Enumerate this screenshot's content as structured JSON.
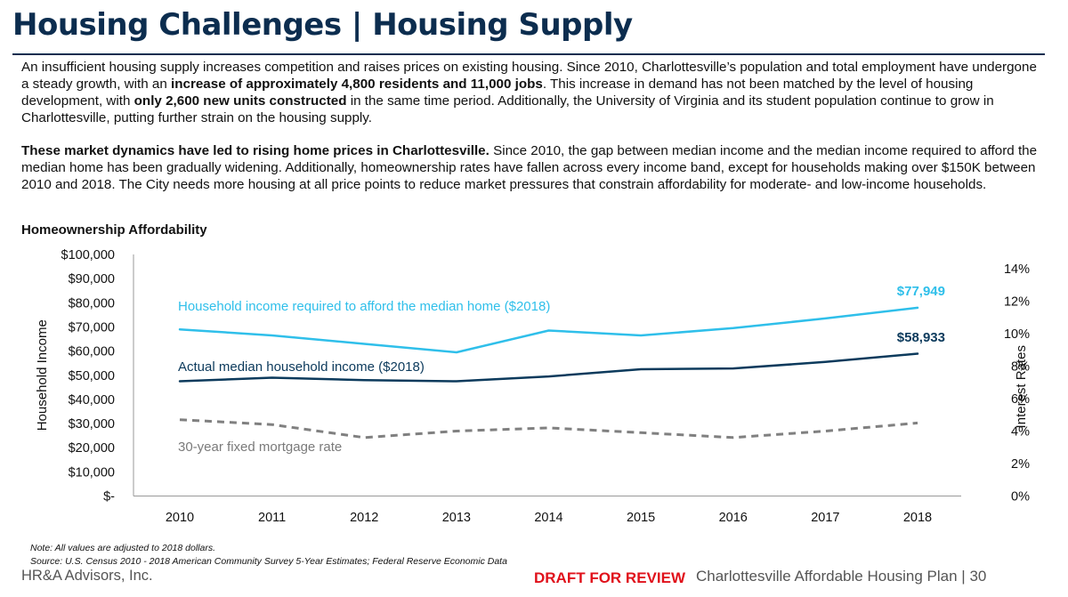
{
  "header": {
    "title": "Housing Challenges | Housing Supply"
  },
  "body": {
    "p1": [
      {
        "t": "An insufficient housing supply increases competition and raises prices on existing housing. Since 2010, Charlottesville’s population and total employment have undergone a steady growth, with an ",
        "b": false
      },
      {
        "t": "increase of approximately 4,800 residents and 11,000 jobs",
        "b": true
      },
      {
        "t": ". This increase in demand has not been matched by the level of housing development, with ",
        "b": false
      },
      {
        "t": "only 2,600 new units constructed",
        "b": true
      },
      {
        "t": " in the same time period. Additionally, the University of Virginia and its student population continue to grow in Charlottesville, putting further strain on the housing supply.",
        "b": false
      }
    ],
    "p2": [
      {
        "t": "These market dynamics have led to rising home prices in Charlottesville.",
        "b": true
      },
      {
        "t": " Since 2010, the gap between median income and the median income required to afford the median home has been gradually widening. Additionally, homeownership rates have fallen across every income band, except for households making over $150K between 2010 and 2018. The City needs more housing at all price points to reduce market pressures that constrain affordability for moderate- and low-income households.",
        "b": false
      }
    ]
  },
  "chart_data": {
    "type": "line",
    "title": "Homeownership Affordability",
    "x": [
      "2010",
      "2011",
      "2012",
      "2013",
      "2014",
      "2015",
      "2016",
      "2017",
      "2018"
    ],
    "ylabel": "Household Income",
    "y2label": "Interest Rates",
    "ylim": [
      0,
      100000
    ],
    "y2lim": [
      0,
      14
    ],
    "yticks": [
      "$-",
      "$10,000",
      "$20,000",
      "$30,000",
      "$40,000",
      "$50,000",
      "$60,000",
      "$70,000",
      "$80,000",
      "$90,000",
      "$100,000"
    ],
    "y2ticks": [
      "0%",
      "2%",
      "4%",
      "6%",
      "8%",
      "10%",
      "12%",
      "14%"
    ],
    "series": [
      {
        "name": "Household income required to afford the median home ($2018)",
        "axis": "left",
        "color": "#2fbfea",
        "dash": false,
        "values": [
          69000,
          66500,
          63000,
          59500,
          68500,
          66500,
          69500,
          73500,
          77949
        ],
        "end_label": "$77,949"
      },
      {
        "name": "Actual median household income ($2018)",
        "axis": "left",
        "color": "#0c3a5c",
        "dash": false,
        "values": [
          47500,
          49000,
          48000,
          47500,
          49500,
          52500,
          52800,
          55500,
          58933
        ],
        "end_label": "$58,933"
      },
      {
        "name": "30-year fixed mortgage rate",
        "axis": "right",
        "color": "#808080",
        "dash": true,
        "values": [
          4.7,
          4.4,
          3.6,
          4.0,
          4.2,
          3.9,
          3.6,
          4.0,
          4.5
        ],
        "end_label": ""
      }
    ],
    "grid": false
  },
  "notes": {
    "note1": "Note: All values are adjusted to 2018 dollars.",
    "note2": "Source: U.S. Census 2010 - 2018 American Community Survey 5-Year Estimates; Federal Reserve Economic Data"
  },
  "footer": {
    "left": "HR&A Advisors, Inc.",
    "draft": "DRAFT FOR REVIEW",
    "right": "Charlottesville Affordable Housing Plan | 30"
  }
}
